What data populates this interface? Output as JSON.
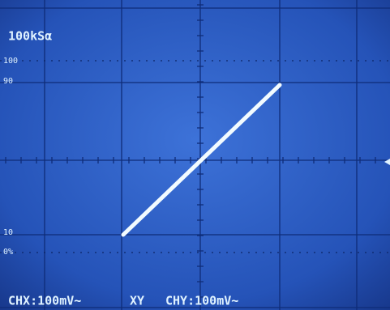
{
  "screen": {
    "sample_rate": "100kSα",
    "markers": {
      "top": "100",
      "upper": "90",
      "lower": "10",
      "bottom": "0%"
    },
    "status": {
      "chx": "CHX:100mV~",
      "mode": "XY",
      "chy": "CHY:100mV~"
    }
  }
}
